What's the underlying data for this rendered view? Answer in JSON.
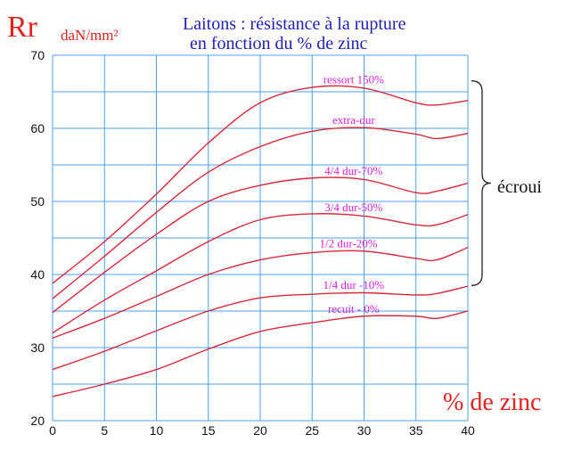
{
  "header": {
    "y_symbol": "Rr",
    "y_unit": "daN/mm²",
    "title_line1": "Laitons : résistance à la rupture",
    "title_line2": "en fonction du % de zinc",
    "x_title": "% de zinc",
    "bracket_label": "écroui"
  },
  "colors": {
    "grid": "#4aa3e8",
    "curve": "#d9283a",
    "curve_label": "#d81ed8",
    "title": "#1f1fb5",
    "axis_title": "#e0231d",
    "tick_text": "#111111"
  },
  "chart_data": {
    "type": "line",
    "title": "Laitons : résistance à la rupture en fonction du % de zinc",
    "xlabel": "% de zinc",
    "ylabel": "Rr daN/mm²",
    "xlim": [
      0,
      40
    ],
    "ylim": [
      20,
      70
    ],
    "x_ticks": [
      0,
      5,
      10,
      15,
      20,
      25,
      30,
      35,
      40
    ],
    "y_ticks": [
      20,
      30,
      40,
      50,
      60,
      70
    ],
    "grid": true,
    "x_grid_step": 5,
    "y_grid_step": 5,
    "x": [
      0,
      5,
      10,
      15,
      20,
      25,
      30,
      35,
      37,
      40
    ],
    "series": [
      {
        "name": "ressort 150%",
        "values": [
          38.8,
          44.5,
          51,
          58,
          63.5,
          65.6,
          65.5,
          63.5,
          63.2,
          63.8
        ]
      },
      {
        "name": "extra-dur",
        "values": [
          36.7,
          42.5,
          48.5,
          54,
          57.5,
          59.6,
          60.1,
          59.2,
          58.6,
          59.3
        ]
      },
      {
        "name": "4/4 dur-70%",
        "values": [
          34.8,
          40.3,
          45.5,
          50,
          52.2,
          53.2,
          53,
          51.2,
          51.4,
          52.5
        ]
      },
      {
        "name": "3/4 dur-50%",
        "values": [
          32,
          36.5,
          40.5,
          44.5,
          47.5,
          48.3,
          48,
          46.8,
          46.8,
          48.2
        ]
      },
      {
        "name": "1/2 dur-20%",
        "values": [
          31.3,
          34,
          37,
          40,
          42,
          43,
          43.2,
          42.2,
          42,
          43.7
        ]
      },
      {
        "name": "1/4 dur -10%",
        "values": [
          27,
          29.5,
          32.3,
          35,
          36.8,
          37.3,
          37.5,
          37.2,
          37.4,
          38.4
        ]
      },
      {
        "name": "recuit - 0%",
        "values": [
          23.3,
          25,
          27,
          29.8,
          32.2,
          33.4,
          34.3,
          34.3,
          34,
          35
        ]
      }
    ],
    "label_x": [
      29,
      29,
      29,
      29,
      28.5,
      29,
      29
    ],
    "bracket": {
      "from_y": 38.5,
      "to_y": 66.5,
      "label": "écroui"
    }
  }
}
